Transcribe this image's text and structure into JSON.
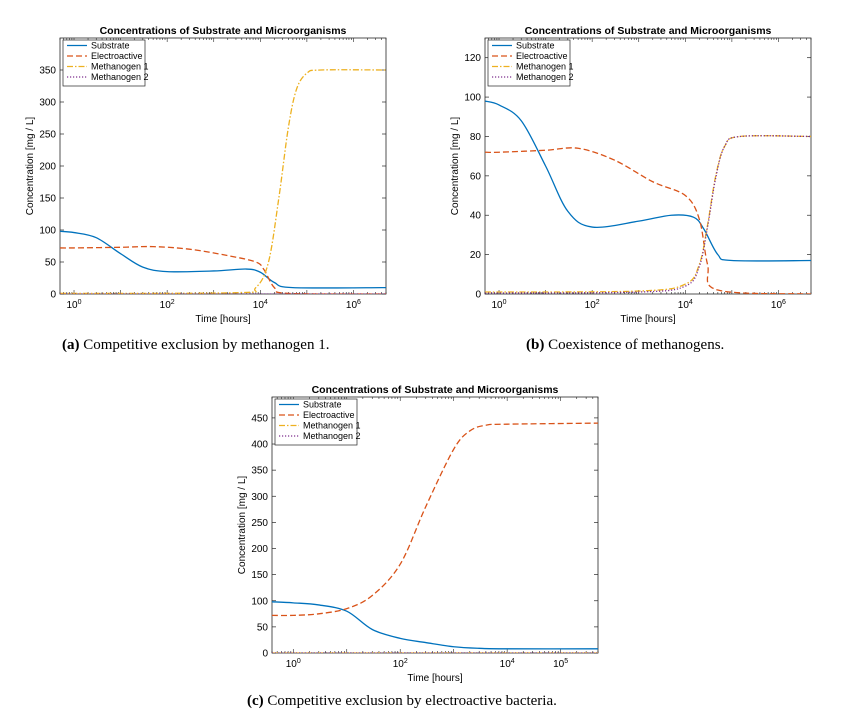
{
  "figure": {
    "captions": [
      {
        "tag": "(a)",
        "text": " Competitive exclusion by methanogen 1."
      },
      {
        "tag": "(b)",
        "text": " Coexistence of methanogens."
      },
      {
        "tag": "(c)",
        "text": " Competitive exclusion by electroactive bacteria."
      }
    ]
  },
  "colors": {
    "substrate": "#0072BD",
    "electroactive": "#D95319",
    "methanogen1": "#EDB120",
    "methanogen2": "#7E2F8E"
  },
  "chart_data": [
    {
      "type": "line",
      "title": "Concentrations of Substrate and Microorganisms",
      "xlabel": "Time [hours]",
      "ylabel": "Concentration [mg / L]",
      "xscale": "log",
      "xlim": [
        0.5,
        5000000
      ],
      "ylim": [
        0,
        400
      ],
      "yticks": [
        0,
        50,
        100,
        150,
        200,
        250,
        300,
        350
      ],
      "xticks": [
        {
          "v": 1,
          "label": "10",
          "exp": "0"
        },
        {
          "v": 100,
          "label": "10",
          "exp": "2"
        },
        {
          "v": 10000,
          "label": "10",
          "exp": "4"
        },
        {
          "v": 1000000,
          "label": "10",
          "exp": "6"
        }
      ],
      "legend": "top-left",
      "series": [
        {
          "name": "Substrate",
          "key": "substrate",
          "style": "solid",
          "x": [
            0.5,
            1,
            3,
            10,
            30,
            100,
            1000,
            5000,
            10000,
            20000,
            50000,
            5000000
          ],
          "y": [
            98,
            96,
            88,
            63,
            42,
            35,
            36,
            39,
            34,
            18,
            10,
            10
          ]
        },
        {
          "name": "Electroactive",
          "key": "electroactive",
          "style": "dashed",
          "x": [
            0.5,
            1,
            10,
            50,
            300,
            2000,
            8000,
            12000,
            20000,
            40000,
            5000000
          ],
          "y": [
            72,
            72,
            73,
            74,
            70,
            60,
            50,
            38,
            10,
            1,
            0
          ]
        },
        {
          "name": "Methanogen 1",
          "key": "methanogen1",
          "style": "dashdot",
          "x": [
            0.5,
            3000,
            8000,
            15000,
            25000,
            40000,
            60000,
            100000,
            200000,
            5000000
          ],
          "y": [
            1,
            2,
            10,
            50,
            150,
            260,
            320,
            345,
            350,
            350
          ]
        },
        {
          "name": "Methanogen 2",
          "key": "methanogen2",
          "style": "dotted",
          "x": [
            0.5,
            5000000
          ],
          "y": [
            0,
            0
          ]
        }
      ]
    },
    {
      "type": "line",
      "title": "Concentrations of Substrate and Microorganisms",
      "xlabel": "Time [hours]",
      "ylabel": "Concentration [mg / L]",
      "xscale": "log",
      "xlim": [
        0.5,
        5000000
      ],
      "ylim": [
        0,
        130
      ],
      "yticks": [
        0,
        20,
        40,
        60,
        80,
        100,
        120
      ],
      "xticks": [
        {
          "v": 1,
          "label": "10",
          "exp": "0"
        },
        {
          "v": 100,
          "label": "10",
          "exp": "2"
        },
        {
          "v": 10000,
          "label": "10",
          "exp": "4"
        },
        {
          "v": 1000000,
          "label": "10",
          "exp": "6"
        }
      ],
      "legend": "top-left",
      "series": [
        {
          "name": "Substrate",
          "key": "substrate",
          "style": "solid",
          "x": [
            0.5,
            1,
            3,
            10,
            30,
            100,
            1000,
            5000,
            15000,
            25000,
            50000,
            100000,
            5000000
          ],
          "y": [
            98,
            96,
            88,
            65,
            42,
            34,
            37,
            40,
            39,
            33,
            20,
            17,
            17
          ]
        },
        {
          "name": "Electroactive",
          "key": "electroactive",
          "style": "dashed",
          "x": [
            0.5,
            1,
            10,
            50,
            300,
            2000,
            10000,
            20000,
            30000,
            50000,
            5000000
          ],
          "y": [
            72,
            72,
            73,
            74,
            68,
            57,
            50,
            38,
            15,
            2,
            0
          ]
        },
        {
          "name": "Methanogen 1",
          "key": "methanogen1",
          "style": "dashdot",
          "x": [
            0.5,
            1000,
            10000,
            20000,
            30000,
            45000,
            70000,
            150000,
            5000000
          ],
          "y": [
            1,
            1.5,
            5,
            15,
            35,
            60,
            75,
            80,
            80
          ]
        },
        {
          "name": "Methanogen 2",
          "key": "methanogen2",
          "style": "dotted",
          "x": [
            0.5,
            1000,
            10000,
            20000,
            30000,
            45000,
            70000,
            150000,
            5000000
          ],
          "y": [
            0.5,
            1,
            4,
            14,
            34,
            59,
            75,
            80,
            80
          ]
        }
      ]
    },
    {
      "type": "line",
      "title": "Concentrations of Substrate and Microorganisms",
      "xlabel": "Time [hours]",
      "ylabel": "Concentration [mg / L]",
      "xscale": "log",
      "xlim": [
        0.4,
        500000
      ],
      "ylim": [
        0,
        490
      ],
      "yticks": [
        0,
        50,
        100,
        150,
        200,
        250,
        300,
        350,
        400,
        450
      ],
      "xticks": [
        {
          "v": 1,
          "label": "10",
          "exp": "0"
        },
        {
          "v": 100,
          "label": "10",
          "exp": "2"
        },
        {
          "v": 10000,
          "label": "10",
          "exp": "4"
        },
        {
          "v": 100000,
          "label": "10",
          "exp": "5"
        }
      ],
      "legend": "top-left",
      "series": [
        {
          "name": "Substrate",
          "key": "substrate",
          "style": "solid",
          "x": [
            0.4,
            1,
            3,
            10,
            30,
            100,
            300,
            1000,
            3000,
            10000,
            500000
          ],
          "y": [
            98,
            96,
            92,
            80,
            45,
            28,
            20,
            12,
            9,
            8,
            8
          ]
        },
        {
          "name": "Electroactive",
          "key": "electroactive",
          "style": "dashed",
          "x": [
            0.4,
            1,
            3,
            10,
            30,
            100,
            300,
            1000,
            2000,
            4000,
            10000,
            500000
          ],
          "y": [
            72,
            72,
            75,
            85,
            110,
            170,
            280,
            390,
            425,
            436,
            438,
            440
          ]
        },
        {
          "name": "Methanogen 1",
          "key": "methanogen1",
          "style": "dashdot",
          "x": [
            0.4,
            500000
          ],
          "y": [
            0,
            0
          ]
        },
        {
          "name": "Methanogen 2",
          "key": "methanogen2",
          "style": "dotted",
          "x": [
            0.4,
            500000
          ],
          "y": [
            0,
            0
          ]
        }
      ]
    }
  ]
}
